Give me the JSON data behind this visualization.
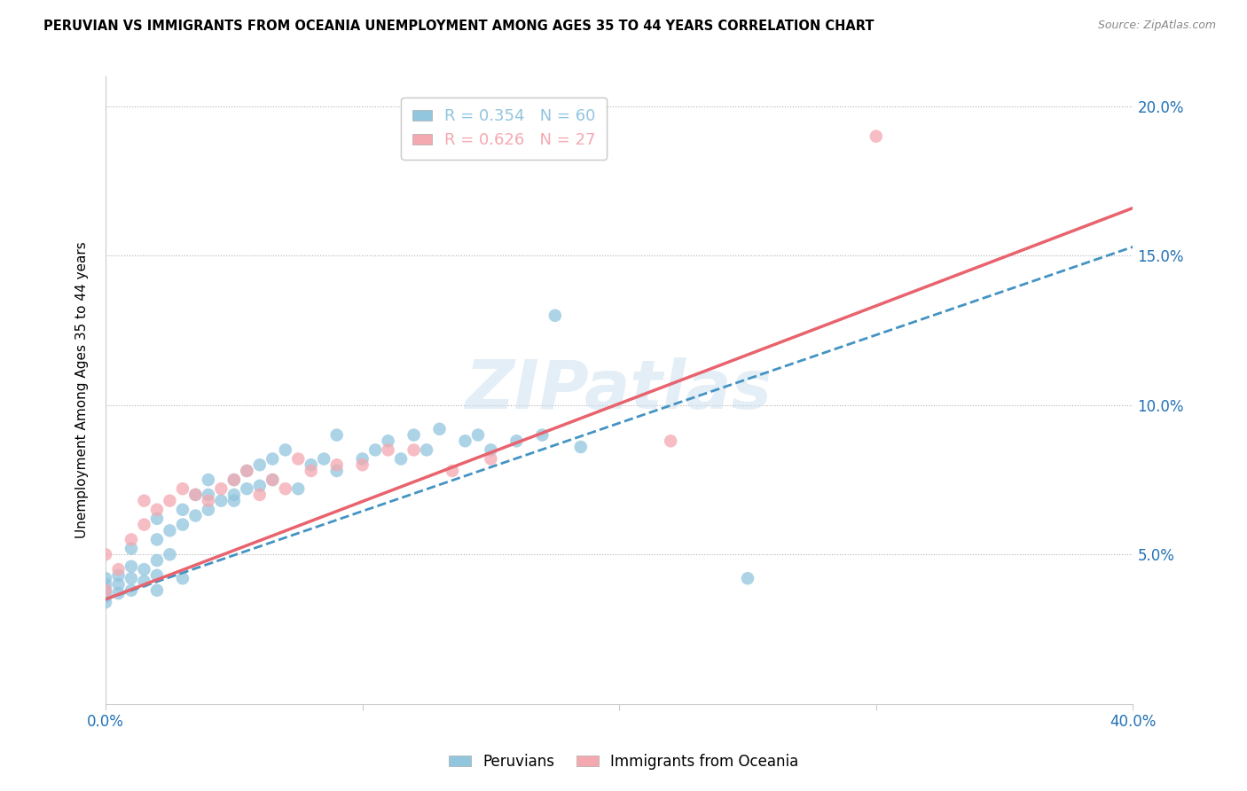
{
  "title": "PERUVIAN VS IMMIGRANTS FROM OCEANIA UNEMPLOYMENT AMONG AGES 35 TO 44 YEARS CORRELATION CHART",
  "source": "Source: ZipAtlas.com",
  "ylabel": "Unemployment Among Ages 35 to 44 years",
  "xlim": [
    0.0,
    0.4
  ],
  "ylim": [
    0.0,
    0.21
  ],
  "xticks": [
    0.0,
    0.1,
    0.2,
    0.3,
    0.4
  ],
  "xticklabels": [
    "0.0%",
    "",
    "",
    "",
    "40.0%"
  ],
  "yticks": [
    0.05,
    0.1,
    0.15,
    0.2
  ],
  "yticklabels": [
    "5.0%",
    "10.0%",
    "15.0%",
    "20.0%"
  ],
  "watermark": "ZIPatlas",
  "legend1_label": "R = 0.354   N = 60",
  "legend2_label": "R = 0.626   N = 27",
  "legend1_color": "#92c5de",
  "legend2_color": "#f4a9b0",
  "peruvian_color": "#92c5de",
  "oceania_color": "#f4a9b0",
  "peruvian_line_color": "#4393c3",
  "oceania_line_color": "#e8636e",
  "peruvian_line": [
    [
      0.0,
      0.035
    ],
    [
      0.4,
      0.153
    ]
  ],
  "oceania_line": [
    [
      0.0,
      0.035
    ],
    [
      0.4,
      0.166
    ]
  ],
  "peruvian_x": [
    0.0,
    0.0,
    0.0,
    0.0,
    0.0,
    0.005,
    0.005,
    0.005,
    0.01,
    0.01,
    0.01,
    0.01,
    0.015,
    0.015,
    0.02,
    0.02,
    0.02,
    0.02,
    0.02,
    0.025,
    0.025,
    0.03,
    0.03,
    0.03,
    0.035,
    0.035,
    0.04,
    0.04,
    0.04,
    0.045,
    0.05,
    0.05,
    0.05,
    0.055,
    0.055,
    0.06,
    0.06,
    0.065,
    0.065,
    0.07,
    0.075,
    0.08,
    0.085,
    0.09,
    0.09,
    0.1,
    0.105,
    0.11,
    0.115,
    0.12,
    0.125,
    0.13,
    0.14,
    0.145,
    0.15,
    0.16,
    0.17,
    0.175,
    0.185,
    0.25
  ],
  "peruvian_y": [
    0.04,
    0.038,
    0.036,
    0.042,
    0.034,
    0.04,
    0.043,
    0.037,
    0.042,
    0.038,
    0.046,
    0.052,
    0.041,
    0.045,
    0.043,
    0.048,
    0.055,
    0.062,
    0.038,
    0.05,
    0.058,
    0.06,
    0.065,
    0.042,
    0.063,
    0.07,
    0.065,
    0.07,
    0.075,
    0.068,
    0.07,
    0.075,
    0.068,
    0.072,
    0.078,
    0.073,
    0.08,
    0.075,
    0.082,
    0.085,
    0.072,
    0.08,
    0.082,
    0.078,
    0.09,
    0.082,
    0.085,
    0.088,
    0.082,
    0.09,
    0.085,
    0.092,
    0.088,
    0.09,
    0.085,
    0.088,
    0.09,
    0.13,
    0.086,
    0.042
  ],
  "oceania_x": [
    0.0,
    0.0,
    0.005,
    0.01,
    0.015,
    0.015,
    0.02,
    0.025,
    0.03,
    0.035,
    0.04,
    0.045,
    0.05,
    0.055,
    0.06,
    0.065,
    0.07,
    0.075,
    0.08,
    0.09,
    0.1,
    0.11,
    0.12,
    0.135,
    0.15,
    0.22,
    0.3
  ],
  "oceania_y": [
    0.038,
    0.05,
    0.045,
    0.055,
    0.06,
    0.068,
    0.065,
    0.068,
    0.072,
    0.07,
    0.068,
    0.072,
    0.075,
    0.078,
    0.07,
    0.075,
    0.072,
    0.082,
    0.078,
    0.08,
    0.08,
    0.085,
    0.085,
    0.078,
    0.082,
    0.088,
    0.19
  ]
}
